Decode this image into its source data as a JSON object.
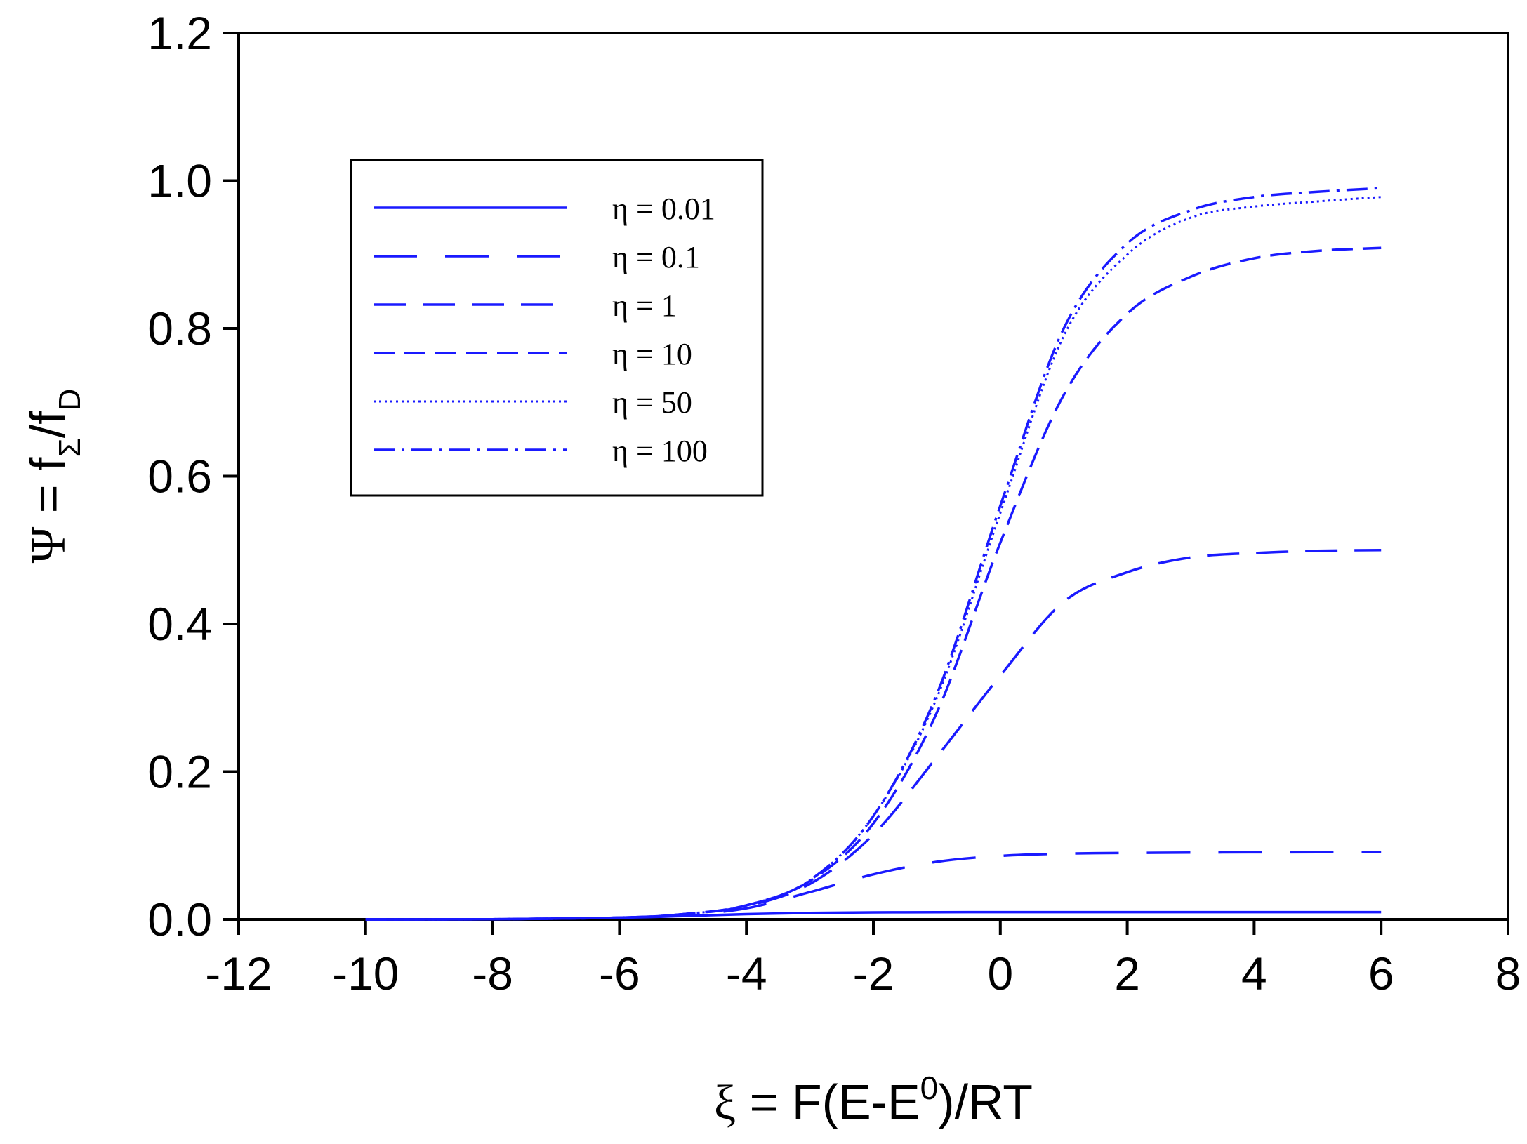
{
  "chart_data": {
    "type": "line",
    "xlabel": {
      "prefix": "ξ",
      "main": " = F(E-E",
      "sup": "0",
      "suffix": ")/RT"
    },
    "ylabel": {
      "prefix": "Ψ",
      "main": " = f",
      "sub1": "Σ",
      "mid": "/f",
      "sub2": "D"
    },
    "xlim": [
      -12,
      8
    ],
    "ylim": [
      0,
      1.2
    ],
    "xticks": [
      -12,
      -10,
      -8,
      -6,
      -4,
      -2,
      0,
      2,
      4,
      6,
      8
    ],
    "xtick_labels": [
      "-12",
      "-10",
      "-8",
      "-6",
      "-4",
      "-2",
      "0",
      "2",
      "4",
      "6",
      "8"
    ],
    "yticks": [
      0,
      0.2,
      0.4,
      0.6,
      0.8,
      1.0,
      1.2
    ],
    "ytick_labels": [
      "0.0",
      "0.2",
      "0.4",
      "0.6",
      "0.8",
      "1.0",
      "1.2"
    ],
    "grid": false,
    "legend_position": "upper-left",
    "line_color": "#1a1aff",
    "x": [
      -10,
      -8,
      -6,
      -5,
      -4,
      -3,
      -2,
      -1,
      0,
      1,
      2,
      3,
      4,
      5,
      6
    ],
    "series": [
      {
        "name": "η = 0.01",
        "dash": "solid",
        "values": [
          0.0,
          0.0003,
          0.0023,
          0.0045,
          0.0071,
          0.0087,
          0.0095,
          0.0098,
          0.0099,
          0.0099,
          0.0099,
          0.0099,
          0.0099,
          0.0099,
          0.0099
        ]
      },
      {
        "name": "η = 0.1",
        "dash": "long-dash",
        "values": [
          0.0,
          0.0003,
          0.0024,
          0.006,
          0.015,
          0.037,
          0.061,
          0.078,
          0.086,
          0.089,
          0.09,
          0.0905,
          0.0908,
          0.0909,
          0.0909
        ]
      },
      {
        "name": "η = 1",
        "dash": "dash",
        "values": [
          0.0,
          0.0003,
          0.0025,
          0.007,
          0.018,
          0.048,
          0.115,
          0.22,
          0.33,
          0.43,
          0.47,
          0.49,
          0.496,
          0.499,
          0.5
        ]
      },
      {
        "name": "η = 10",
        "dash": "medium-dash",
        "values": [
          0.0,
          0.0003,
          0.0025,
          0.007,
          0.019,
          0.052,
          0.13,
          0.28,
          0.51,
          0.71,
          0.82,
          0.87,
          0.895,
          0.905,
          0.909
        ]
      },
      {
        "name": "η = 50",
        "dash": "dotted",
        "values": [
          0.0,
          0.0003,
          0.0025,
          0.007,
          0.019,
          0.053,
          0.14,
          0.3,
          0.55,
          0.79,
          0.9,
          0.95,
          0.965,
          0.972,
          0.978
        ]
      },
      {
        "name": "η = 100",
        "dash": "dash-dot",
        "values": [
          0.0,
          0.0003,
          0.0025,
          0.007,
          0.019,
          0.053,
          0.14,
          0.305,
          0.56,
          0.8,
          0.915,
          0.96,
          0.978,
          0.985,
          0.99
        ]
      }
    ]
  }
}
